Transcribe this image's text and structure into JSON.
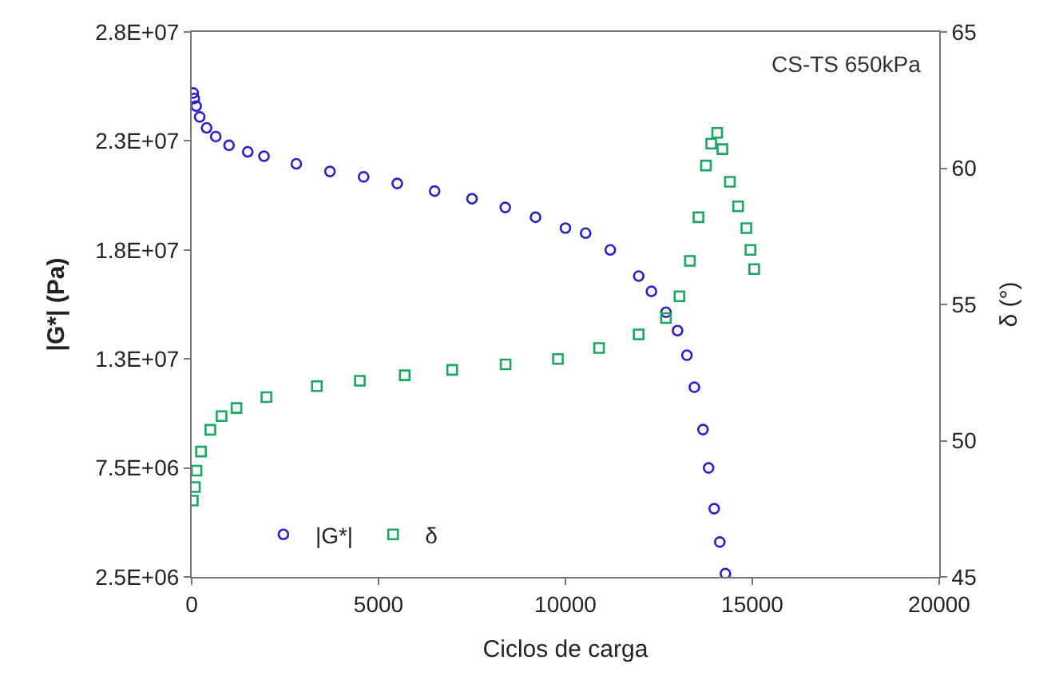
{
  "chart_data": {
    "type": "scatter",
    "xlabel": "Ciclos de carga",
    "ylabel": "|G*| (Pa)",
    "y2label": "δ (°)",
    "annotations": [
      "CS-TS 650kPa"
    ],
    "xlim": [
      0,
      20000
    ],
    "xticks": [
      0,
      5000,
      10000,
      15000,
      20000
    ],
    "ylim": [
      2500000,
      27500000
    ],
    "yticks": [
      {
        "value": 2500000,
        "label": "2.5E+06"
      },
      {
        "value": 7500000,
        "label": "7.5E+06"
      },
      {
        "value": 12500000,
        "label": "1.3E+07"
      },
      {
        "value": 17500000,
        "label": "1.8E+07"
      },
      {
        "value": 22500000,
        "label": "2.3E+07"
      },
      {
        "value": 27500000,
        "label": "2.8E+07"
      }
    ],
    "y2lim": [
      45,
      65
    ],
    "y2ticks": [
      45,
      50,
      55,
      60,
      65
    ],
    "legend": "bottom left",
    "series": [
      {
        "name": "|G*|",
        "color": "#2a1fd0",
        "marker": "circle",
        "x": [
          40,
          70,
          120,
          215,
          400,
          645,
          1000,
          1500,
          1935,
          2800,
          3700,
          4600,
          5500,
          6500,
          7500,
          8390,
          9200,
          10000,
          10540,
          11200,
          11960,
          12300,
          12690,
          13000,
          13250,
          13450,
          13680,
          13830,
          13980,
          14130,
          14280
        ],
        "values": [
          24700000,
          24450000,
          24100000,
          23600000,
          23100000,
          22700000,
          22300000,
          22000000,
          21800000,
          21450000,
          21100000,
          20850000,
          20550000,
          20200000,
          19850000,
          19450000,
          19000000,
          18500000,
          18270000,
          17500000,
          16300000,
          15600000,
          14640000,
          13800000,
          12670000,
          11200000,
          9260000,
          7500000,
          5630000,
          4100000,
          2650000
        ]
      },
      {
        "name": "δ",
        "color": "#1aa860",
        "marker": "square",
        "axis": "y2",
        "x": [
          30,
          86,
          130,
          250,
          500,
          800,
          1200,
          2000,
          3350,
          4500,
          5700,
          6970,
          8400,
          9800,
          10900,
          11960,
          12690,
          13050,
          13330,
          13560,
          13760,
          13900,
          14060,
          14200,
          14400,
          14620,
          14840,
          14950,
          15050
        ],
        "values": [
          47.8,
          48.3,
          48.9,
          49.6,
          50.4,
          50.9,
          51.2,
          51.6,
          52.0,
          52.2,
          52.4,
          52.6,
          52.8,
          53.0,
          53.4,
          53.9,
          54.5,
          55.3,
          56.6,
          58.2,
          60.1,
          60.9,
          61.3,
          60.7,
          59.5,
          58.6,
          57.8,
          57.0,
          56.3
        ]
      }
    ]
  }
}
